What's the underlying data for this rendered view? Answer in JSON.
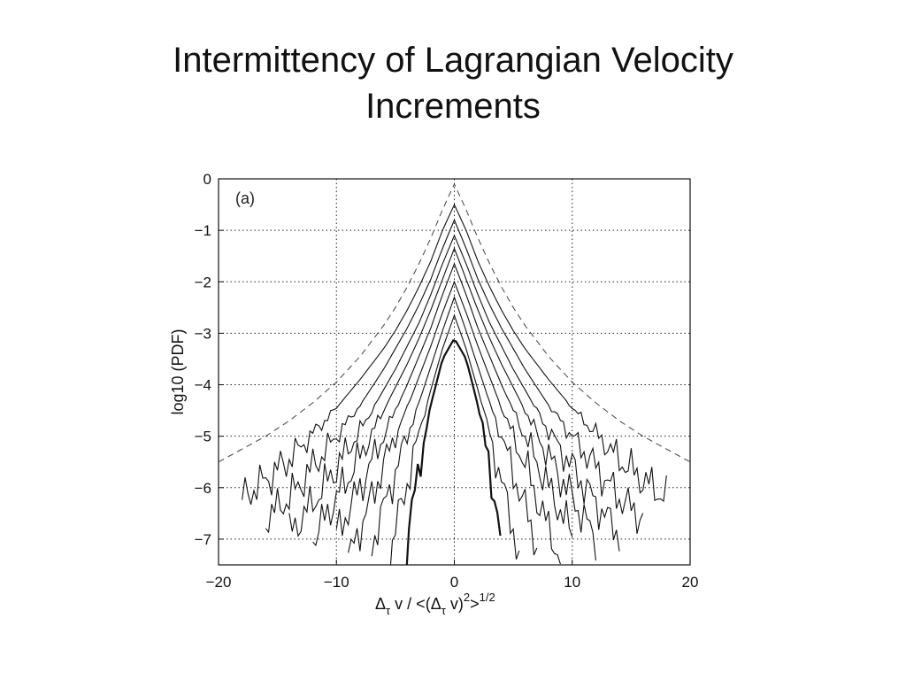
{
  "slide": {
    "title_line1": "Intermittency of Lagrangian Velocity",
    "title_line2": "Increments"
  },
  "chart_data": {
    "type": "line",
    "panel_label": "(a)",
    "ylabel": "log10 (PDF)",
    "xlabel": {
      "base": "Δ",
      "sub": "τ",
      "mid": " v / <(",
      "base2": "Δ",
      "sub2": "τ",
      "tail": " v)",
      "sup": "2",
      "end": ">",
      "sup2": "1/2"
    },
    "xlim": [
      -20,
      20
    ],
    "ylim": [
      -7.5,
      0
    ],
    "xticks": [
      -20,
      -10,
      0,
      10,
      20
    ],
    "xtick_labels": [
      "−20",
      "−10",
      "0",
      "10",
      "20"
    ],
    "yticks": [
      0,
      -1,
      -2,
      -3,
      -4,
      -5,
      -6,
      -7
    ],
    "ytick_labels": [
      "0",
      "−1",
      "−2",
      "−3",
      "−4",
      "−5",
      "−6",
      "−7"
    ],
    "grid": true,
    "curves": [
      {
        "style": "dashed",
        "peak": -0.1,
        "pts": [
          [
            0,
            -0.1
          ],
          [
            1,
            -0.6
          ],
          [
            2,
            -1.15
          ],
          [
            3,
            -1.65
          ],
          [
            4,
            -2.1
          ],
          [
            5,
            -2.5
          ],
          [
            6,
            -2.85
          ],
          [
            8,
            -3.45
          ],
          [
            10,
            -3.95
          ],
          [
            12,
            -4.35
          ],
          [
            14,
            -4.7
          ],
          [
            16,
            -5.0
          ],
          [
            18,
            -5.25
          ],
          [
            20,
            -5.5
          ]
        ]
      },
      {
        "style": "solid",
        "peak": -0.5,
        "pts": [
          [
            0,
            -0.5
          ],
          [
            1,
            -1.0
          ],
          [
            2,
            -1.6
          ],
          [
            3,
            -2.1
          ],
          [
            4,
            -2.55
          ],
          [
            5,
            -2.95
          ],
          [
            6,
            -3.3
          ],
          [
            8,
            -3.9
          ],
          [
            10,
            -4.45
          ],
          [
            12,
            -4.95
          ],
          [
            14,
            -5.45
          ],
          [
            16,
            -5.85
          ],
          [
            18,
            -6.2
          ]
        ]
      },
      {
        "style": "solid",
        "peak": -0.8,
        "pts": [
          [
            0,
            -0.8
          ],
          [
            1,
            -1.35
          ],
          [
            2,
            -1.95
          ],
          [
            3,
            -2.45
          ],
          [
            4,
            -2.9
          ],
          [
            5,
            -3.3
          ],
          [
            6,
            -3.7
          ],
          [
            8,
            -4.4
          ],
          [
            10,
            -5.0
          ],
          [
            12,
            -5.6
          ],
          [
            14,
            -6.2
          ],
          [
            16,
            -6.6
          ]
        ]
      },
      {
        "style": "solid",
        "peak": -1.1,
        "pts": [
          [
            0,
            -1.1
          ],
          [
            1,
            -1.65
          ],
          [
            2,
            -2.25
          ],
          [
            3,
            -2.8
          ],
          [
            4,
            -3.25
          ],
          [
            5,
            -3.7
          ],
          [
            6,
            -4.1
          ],
          [
            8,
            -4.9
          ],
          [
            10,
            -5.6
          ],
          [
            12,
            -6.3
          ],
          [
            14,
            -6.9
          ]
        ]
      },
      {
        "style": "solid",
        "peak": -1.35,
        "pts": [
          [
            0,
            -1.35
          ],
          [
            1,
            -1.95
          ],
          [
            2,
            -2.55
          ],
          [
            3,
            -3.1
          ],
          [
            4,
            -3.6
          ],
          [
            5,
            -4.05
          ],
          [
            6,
            -4.5
          ],
          [
            8,
            -5.4
          ],
          [
            10,
            -6.2
          ],
          [
            12,
            -7.0
          ]
        ]
      },
      {
        "style": "solid",
        "peak": -1.65,
        "pts": [
          [
            0,
            -1.65
          ],
          [
            1,
            -2.25
          ],
          [
            2,
            -2.9
          ],
          [
            3,
            -3.45
          ],
          [
            4,
            -4.0
          ],
          [
            5,
            -4.5
          ],
          [
            6,
            -5.0
          ],
          [
            8,
            -6.0
          ],
          [
            10,
            -6.9
          ]
        ]
      },
      {
        "style": "solid",
        "peak": -2.0,
        "pts": [
          [
            0,
            -2.0
          ],
          [
            1,
            -2.6
          ],
          [
            2,
            -3.25
          ],
          [
            3,
            -3.85
          ],
          [
            4,
            -4.45
          ],
          [
            5,
            -5.0
          ],
          [
            6,
            -5.55
          ],
          [
            7,
            -6.2
          ],
          [
            8,
            -6.8
          ],
          [
            9,
            -7.4
          ]
        ]
      },
      {
        "style": "solid",
        "peak": -2.3,
        "pts": [
          [
            0,
            -2.3
          ],
          [
            1,
            -2.95
          ],
          [
            2,
            -3.65
          ],
          [
            3,
            -4.35
          ],
          [
            4,
            -5.0
          ],
          [
            5,
            -5.7
          ],
          [
            6,
            -6.4
          ],
          [
            7,
            -7.1
          ]
        ]
      },
      {
        "style": "solid",
        "peak": -2.65,
        "pts": [
          [
            0,
            -2.65
          ],
          [
            1,
            -3.3
          ],
          [
            2,
            -4.1
          ],
          [
            3,
            -4.95
          ],
          [
            4,
            -5.9
          ],
          [
            5,
            -6.8
          ],
          [
            5.5,
            -7.4
          ]
        ]
      },
      {
        "style": "bold",
        "peak": -3.1,
        "pts": [
          [
            0,
            -3.1
          ],
          [
            1,
            -3.5
          ],
          [
            2,
            -4.4
          ],
          [
            3,
            -5.6
          ],
          [
            3.7,
            -6.6
          ],
          [
            4.1,
            -7.4
          ]
        ]
      }
    ]
  }
}
